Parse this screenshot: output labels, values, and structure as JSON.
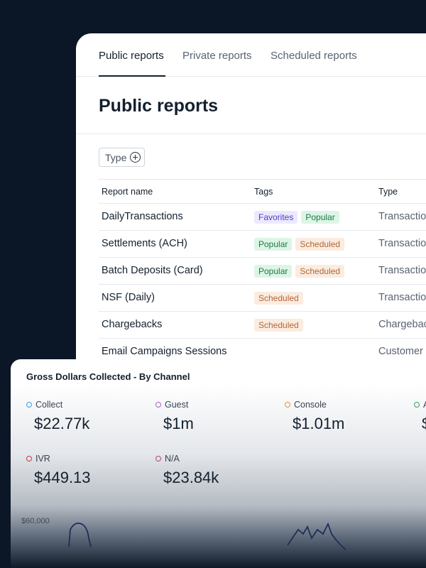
{
  "tabs": [
    {
      "label": "Public reports",
      "active": true
    },
    {
      "label": "Private reports",
      "active": false
    },
    {
      "label": "Scheduled reports",
      "active": false
    }
  ],
  "page_title": "Public reports",
  "filter": {
    "label": "Type"
  },
  "table": {
    "headers": [
      "Report name",
      "Tags",
      "Type"
    ],
    "rows": [
      {
        "name": "DailyTransactions",
        "tags": [
          "Favorites",
          "Popular"
        ],
        "type": "Transactions"
      },
      {
        "name": "Settlements (ACH)",
        "tags": [
          "Popular",
          "Scheduled"
        ],
        "type": "Transactions"
      },
      {
        "name": "Batch Deposits (Card)",
        "tags": [
          "Popular",
          "Scheduled"
        ],
        "type": "Transactions"
      },
      {
        "name": "NSF (Daily)",
        "tags": [
          "Scheduled"
        ],
        "type": "Transactions"
      },
      {
        "name": "Chargebacks",
        "tags": [
          "Scheduled"
        ],
        "type": "Chargebacks"
      },
      {
        "name": "Email Campaigns Sessions",
        "tags": [],
        "type": "Customer"
      }
    ]
  },
  "gross": {
    "title": "Gross Dollars Collected - By Channel",
    "metrics": [
      {
        "label": "Collect",
        "value": "$22.77k",
        "color": "#3b9ee8"
      },
      {
        "label": "Guest",
        "value": "$1m",
        "color": "#b25ad8"
      },
      {
        "label": "Console",
        "value": "$1.01m",
        "color": "#e0962a"
      },
      {
        "label": "A",
        "value": "$",
        "color": "#3aa655"
      },
      {
        "label": "IVR",
        "value": "$449.13",
        "color": "#c53c3c"
      },
      {
        "label": "N/A",
        "value": "$23.84k",
        "color": "#c2447a"
      }
    ],
    "axis_label": "$60,000"
  },
  "tag_colors": {
    "Favorites": "tag-favorites",
    "Popular": "tag-popular",
    "Scheduled": "tag-scheduled"
  }
}
